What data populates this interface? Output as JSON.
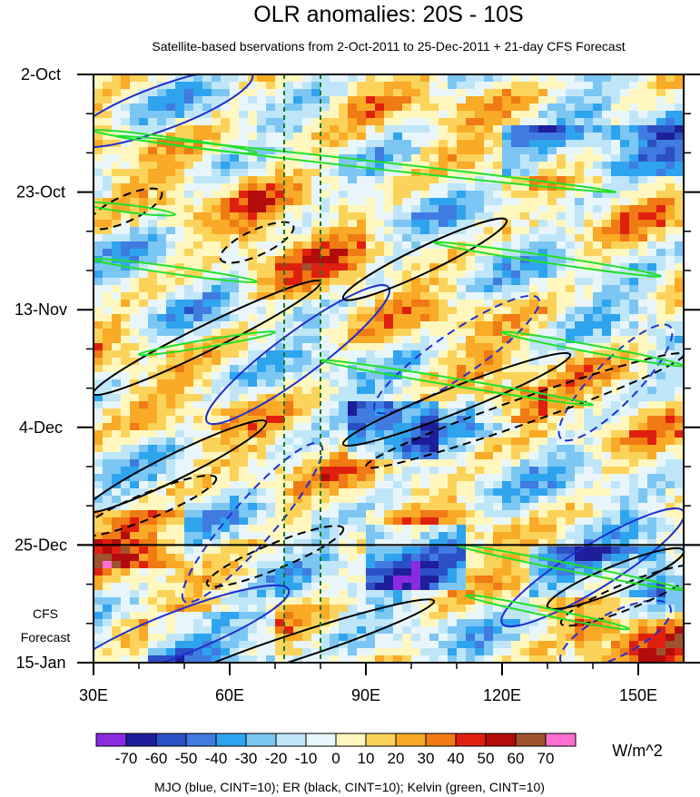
{
  "chart_data": {
    "type": "heatmap",
    "title": "OLR anomalies: 20S - 10S",
    "subtitle": "Satellite-based bservations from 2-Oct-2011 to 25-Dec-2011 + 21-day CFS Forecast",
    "xlabel": "",
    "ylabel": "",
    "x_range": [
      30,
      160
    ],
    "x_ticks": [
      "30E",
      "60E",
      "90E",
      "120E",
      "150E"
    ],
    "x_tick_values": [
      30,
      60,
      90,
      120,
      150
    ],
    "y_ticks": [
      "2-Oct",
      "23-Oct",
      "13-Nov",
      "4-Dec",
      "25-Dec",
      "15-Jan"
    ],
    "y_tick_days": [
      0,
      21,
      42,
      63,
      84,
      105
    ],
    "observation_end_day": 84,
    "forecast_label": [
      "CFS",
      "Forecast"
    ],
    "reference_lines_lon": [
      72,
      80
    ],
    "colorbar": {
      "levels": [
        -70,
        -60,
        -50,
        -40,
        -30,
        -20,
        -10,
        0,
        10,
        20,
        30,
        40,
        50,
        60,
        70
      ],
      "labels": [
        "-70",
        "-60",
        "-50",
        "-40",
        "-30",
        "-20",
        "-10",
        "0",
        "10",
        "20",
        "30",
        "40",
        "50",
        "60",
        "70"
      ],
      "colors": [
        "#8a2be2",
        "#1e1e9a",
        "#2b4fc4",
        "#3f7be0",
        "#2fa4ee",
        "#7cc6f3",
        "#bfe6f8",
        "#e8f6fb",
        "#fff7be",
        "#fcd35a",
        "#f9aa26",
        "#f07a14",
        "#e0200e",
        "#b30c0c",
        "#a0522d",
        "#ff6fcf"
      ],
      "unit": "W/m^2"
    },
    "footer": "MJO (blue, CINT=10); ER (black, CINT=10); Kelvin (green, CINT=10)",
    "features": [
      {
        "kind": "mjo",
        "sign": "neg",
        "lon": 45,
        "day": 6,
        "dlon": -20,
        "dday": 6
      },
      {
        "kind": "mjo",
        "sign": "neg",
        "lon": 75,
        "day": 50,
        "dlon": -20,
        "dday": 12
      },
      {
        "kind": "mjo",
        "sign": "neg",
        "lon": 140,
        "day": 88,
        "dlon": -20,
        "dday": 10
      },
      {
        "kind": "mjo",
        "sign": "neg",
        "lon": 48,
        "day": 100,
        "dlon": -25,
        "dday": 8
      },
      {
        "kind": "mjo",
        "sign": "pos",
        "lon": 110,
        "day": 50,
        "dlon": -18,
        "dday": 10
      },
      {
        "kind": "mjo",
        "sign": "pos",
        "lon": 65,
        "day": 80,
        "dlon": -15,
        "dday": 14
      },
      {
        "kind": "mjo",
        "sign": "pos",
        "lon": 145,
        "day": 55,
        "dlon": -12,
        "dday": 10
      },
      {
        "kind": "mjo",
        "sign": "pos",
        "lon": 145,
        "day": 100,
        "dlon": -12,
        "dday": 5
      },
      {
        "kind": "er",
        "sign": "pos",
        "lon": 55,
        "day": 47,
        "dlon": 25,
        "dday": -10
      },
      {
        "kind": "er",
        "sign": "pos",
        "lon": 110,
        "day": 58,
        "dlon": 25,
        "dday": -8
      },
      {
        "kind": "er",
        "sign": "pos",
        "lon": 48,
        "day": 70,
        "dlon": 20,
        "dday": -8
      },
      {
        "kind": "er",
        "sign": "pos",
        "lon": 103,
        "day": 33,
        "dlon": 18,
        "dday": -7
      },
      {
        "kind": "er",
        "sign": "pos",
        "lon": 75,
        "day": 102,
        "dlon": 30,
        "dday": -8
      },
      {
        "kind": "er",
        "sign": "pos",
        "lon": 145,
        "day": 90,
        "dlon": 15,
        "dday": -5
      },
      {
        "kind": "er",
        "sign": "neg",
        "lon": 125,
        "day": 60,
        "dlon": 35,
        "dday": -10
      },
      {
        "kind": "er",
        "sign": "neg",
        "lon": 42,
        "day": 77,
        "dlon": 15,
        "dday": -5
      },
      {
        "kind": "er",
        "sign": "neg",
        "lon": 70,
        "day": 86,
        "dlon": 15,
        "dday": -5
      },
      {
        "kind": "er",
        "sign": "neg",
        "lon": 66,
        "day": 30,
        "dlon": 8,
        "dday": -3
      },
      {
        "kind": "er",
        "sign": "neg",
        "lon": 37,
        "day": 24,
        "dlon": 8,
        "dday": -3
      },
      {
        "kind": "er",
        "sign": "neg",
        "lon": 148,
        "day": 93,
        "dlon": 15,
        "dday": -5
      },
      {
        "kind": "kelvin",
        "lon": 90,
        "day": 16,
        "dlon": 55,
        "dday": 5
      },
      {
        "kind": "kelvin",
        "lon": 130,
        "day": 33,
        "dlon": 25,
        "dday": 3
      },
      {
        "kind": "kelvin",
        "lon": 140,
        "day": 49,
        "dlon": 20,
        "dday": 3
      },
      {
        "kind": "kelvin",
        "lon": 55,
        "day": 48,
        "dlon": 15,
        "dday": -2
      },
      {
        "kind": "kelvin",
        "lon": 48,
        "day": 12,
        "dlon": 18,
        "dday": 2
      },
      {
        "kind": "kelvin",
        "lon": 48,
        "day": 35,
        "dlon": 18,
        "dday": 2
      },
      {
        "kind": "kelvin",
        "lon": 38,
        "day": 24,
        "dlon": 10,
        "dday": 1
      },
      {
        "kind": "kelvin",
        "lon": 135,
        "day": 88,
        "dlon": 25,
        "dday": 4
      },
      {
        "kind": "kelvin",
        "lon": 110,
        "day": 55,
        "dlon": 30,
        "dday": 4
      },
      {
        "kind": "kelvin",
        "lon": 130,
        "day": 96,
        "dlon": 18,
        "dday": 3
      }
    ]
  }
}
